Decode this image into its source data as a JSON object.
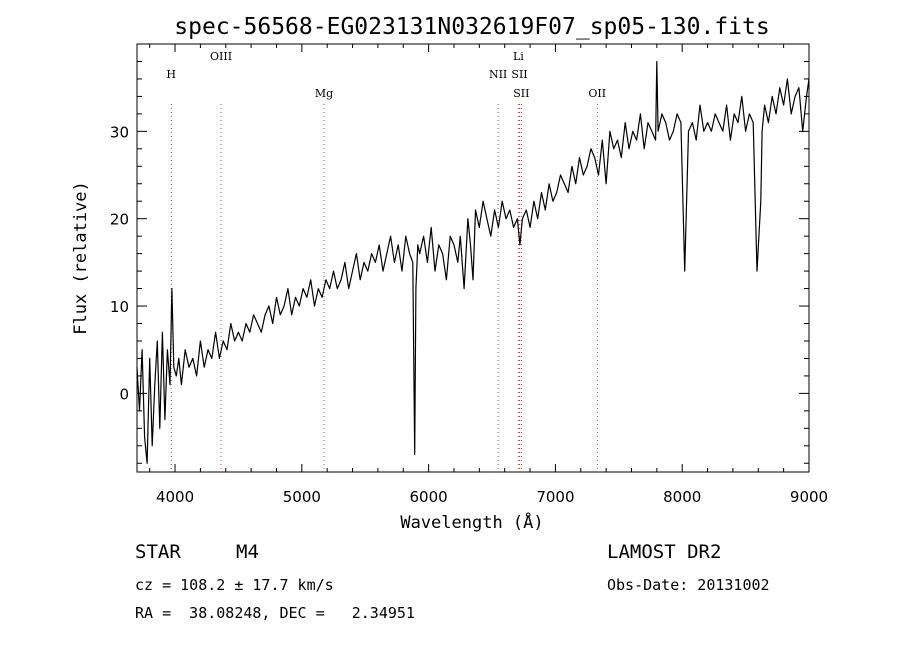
{
  "chart_data": {
    "type": "line",
    "title": "spec-56568-EG023131N032619F07_sp05-130.fits",
    "xlabel": "Wavelength (Å)",
    "ylabel": "Flux (relative)",
    "xlim": [
      3700,
      9000
    ],
    "ylim": [
      -9,
      40
    ],
    "xticks": [
      4000,
      5000,
      6000,
      7000,
      8000,
      9000
    ],
    "yticks": [
      0,
      10,
      20,
      30
    ],
    "grid": false,
    "series": [
      {
        "color": "#000000",
        "x": [
          3700,
          3720,
          3740,
          3760,
          3780,
          3800,
          3820,
          3840,
          3860,
          3880,
          3900,
          3920,
          3940,
          3960,
          3975,
          3990,
          4010,
          4030,
          4050,
          4080,
          4110,
          4140,
          4170,
          4200,
          4230,
          4260,
          4290,
          4320,
          4350,
          4380,
          4410,
          4440,
          4470,
          4500,
          4530,
          4560,
          4590,
          4620,
          4650,
          4680,
          4710,
          4740,
          4770,
          4800,
          4830,
          4860,
          4890,
          4920,
          4950,
          4980,
          5010,
          5040,
          5070,
          5100,
          5130,
          5160,
          5190,
          5220,
          5250,
          5280,
          5310,
          5340,
          5370,
          5400,
          5430,
          5460,
          5490,
          5520,
          5550,
          5580,
          5610,
          5640,
          5670,
          5700,
          5730,
          5760,
          5790,
          5820,
          5850,
          5875,
          5890,
          5900,
          5915,
          5930,
          5960,
          5990,
          6020,
          6050,
          6080,
          6110,
          6140,
          6170,
          6200,
          6230,
          6250,
          6280,
          6310,
          6330,
          6350,
          6370,
          6400,
          6430,
          6460,
          6490,
          6520,
          6550,
          6580,
          6610,
          6640,
          6670,
          6700,
          6720,
          6740,
          6770,
          6800,
          6830,
          6860,
          6890,
          6920,
          6950,
          6980,
          7010,
          7040,
          7070,
          7100,
          7130,
          7160,
          7190,
          7220,
          7250,
          7280,
          7310,
          7340,
          7370,
          7400,
          7430,
          7460,
          7490,
          7520,
          7550,
          7580,
          7610,
          7640,
          7670,
          7700,
          7730,
          7760,
          7790,
          7800,
          7810,
          7840,
          7870,
          7900,
          7930,
          7960,
          7990,
          8020,
          8050,
          8080,
          8110,
          8140,
          8170,
          8200,
          8230,
          8260,
          8290,
          8320,
          8350,
          8380,
          8410,
          8440,
          8470,
          8500,
          8530,
          8560,
          8590,
          8620,
          8630,
          8650,
          8680,
          8710,
          8740,
          8770,
          8800,
          8830,
          8860,
          8890,
          8920,
          8950,
          8980,
          9000
        ],
        "y": [
          3,
          -2,
          5,
          -5,
          -8,
          4,
          -6,
          1,
          6,
          -4,
          7,
          -3,
          5,
          1,
          12,
          3,
          2,
          4,
          1,
          5,
          3,
          4,
          2,
          6,
          3,
          5,
          4,
          7,
          4,
          6,
          5,
          8,
          6,
          7,
          6,
          8,
          7,
          9,
          8,
          7,
          9,
          10,
          8,
          11,
          9,
          10,
          12,
          9,
          11,
          10,
          12,
          11,
          13,
          10,
          12,
          11,
          13,
          12,
          14,
          12,
          13,
          15,
          12,
          14,
          16,
          13,
          15,
          14,
          16,
          15,
          17,
          14,
          16,
          18,
          15,
          17,
          14,
          18,
          16,
          15,
          -7,
          12,
          17,
          16,
          18,
          15,
          19,
          14,
          17,
          16,
          13,
          18,
          17,
          15,
          18,
          12,
          20,
          17,
          13,
          21,
          19,
          22,
          20,
          18,
          21,
          19,
          22,
          20,
          21,
          19,
          20,
          17,
          20,
          21,
          19,
          22,
          20,
          23,
          21,
          24,
          22,
          23,
          25,
          24,
          23,
          26,
          24,
          27,
          25,
          26,
          28,
          27,
          25,
          29,
          24,
          30,
          28,
          29,
          27,
          31,
          28,
          30,
          29,
          32,
          28,
          31,
          30,
          29,
          38,
          30,
          32,
          31,
          29,
          30,
          32,
          31,
          14,
          30,
          31,
          29,
          33,
          30,
          31,
          30,
          32,
          31,
          30,
          33,
          29,
          32,
          31,
          34,
          30,
          32,
          31,
          14,
          22,
          30,
          33,
          31,
          34,
          32,
          35,
          33,
          36,
          32,
          34,
          35,
          30,
          34,
          36
        ]
      }
    ],
    "lines": [
      {
        "x": 3970,
        "label": "H",
        "row": 1
      },
      {
        "x": 4363,
        "label": "OIII",
        "row": 0
      },
      {
        "x": 5175,
        "label": "Mg",
        "row": 2
      },
      {
        "x": 6548,
        "label": "NII",
        "row": 1
      },
      {
        "x": 6708,
        "label": "Li",
        "row": 0
      },
      {
        "x": 6717,
        "label": "SII",
        "row": 1
      },
      {
        "x": 6731,
        "label": "SII",
        "row": 2
      },
      {
        "x": 7330,
        "label": "OII",
        "row": 2
      }
    ],
    "line_color": "#d04040"
  },
  "info": {
    "object_class": "STAR",
    "subclass": "M4",
    "survey": "LAMOST DR2",
    "cz": "cz = 108.2 ± 17.7 km/s",
    "obs_date": "Obs-Date: 20131002",
    "coords": "RA =  38.08248, DEC =   2.34951"
  }
}
